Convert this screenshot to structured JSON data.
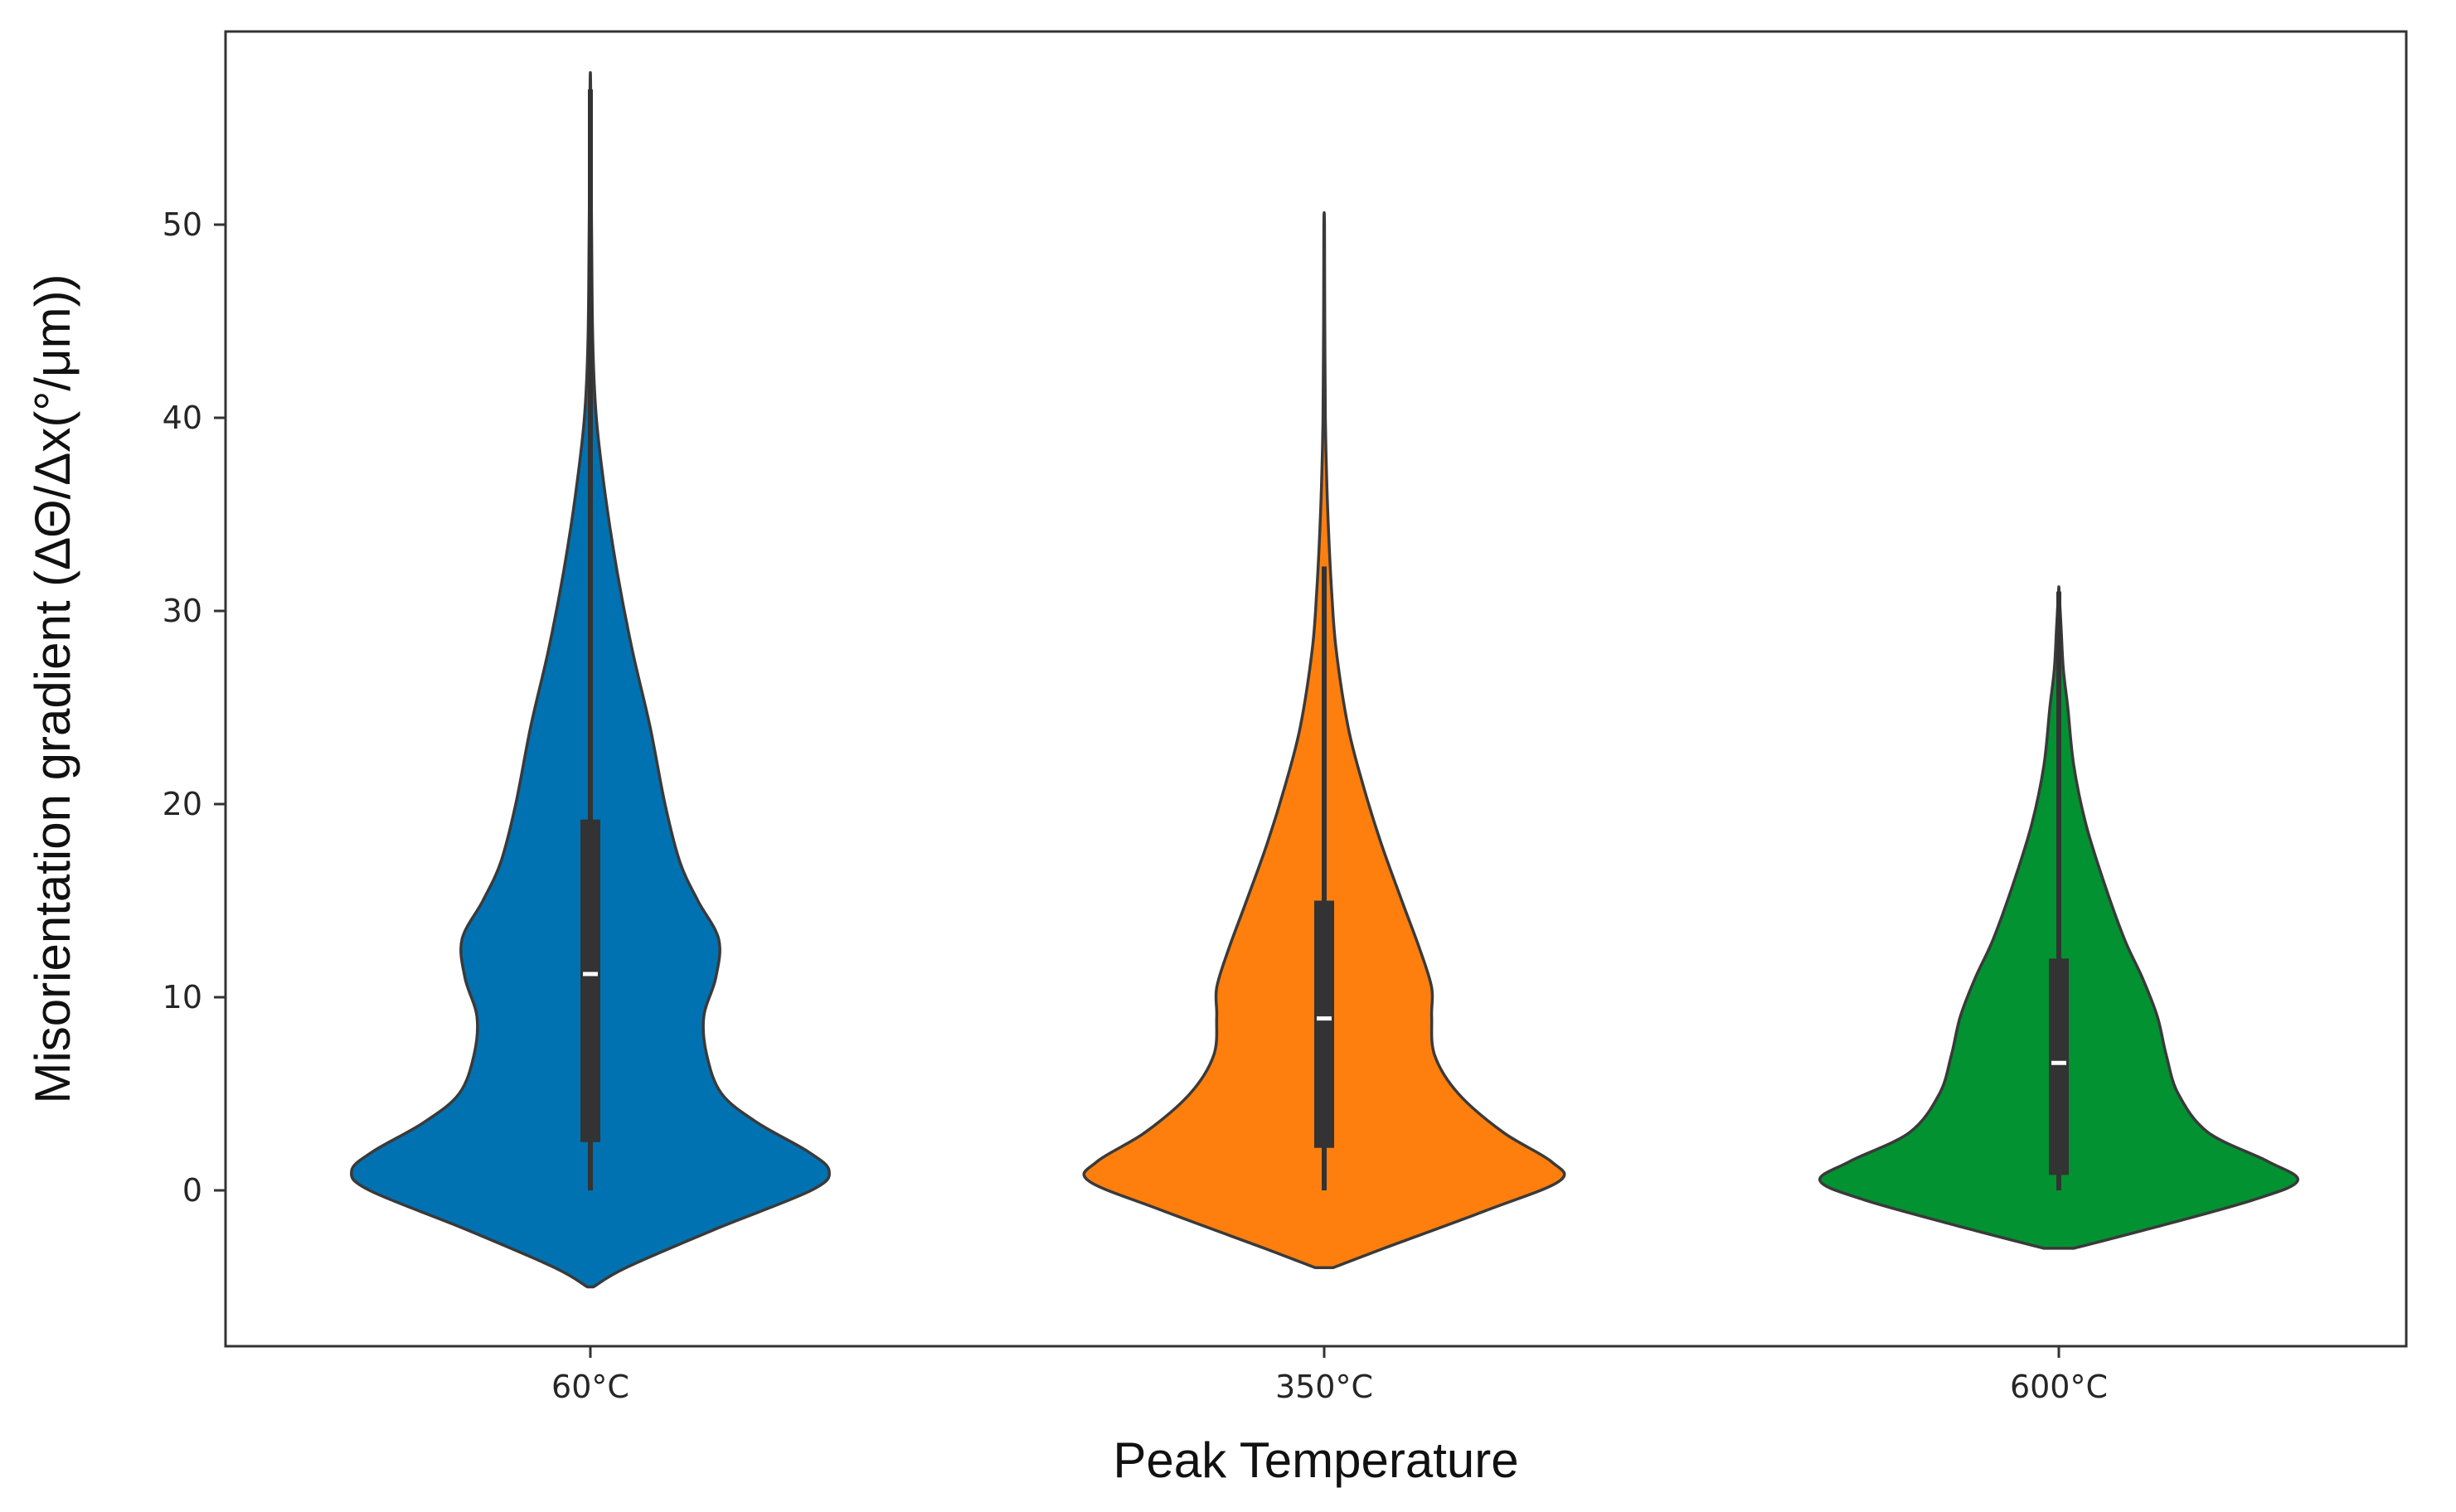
{
  "chart_data": {
    "type": "violin",
    "xlabel": "Peak Temperature",
    "ylabel": "Misorientation gradient (ΔΘ/Δx(°/μm))",
    "ylim": [
      -8,
      60
    ],
    "yticks": [
      0,
      10,
      20,
      30,
      40,
      50
    ],
    "grid": false,
    "legend": "none",
    "categories": [
      "60°C",
      "350°C",
      "600°C"
    ],
    "series": [
      {
        "category": "60°C",
        "color": "#0072b2",
        "y_min": 0,
        "y_max": 57,
        "q1": 2.5,
        "median": 11.2,
        "q3": 19.2,
        "whisker_low": 0,
        "whisker_high": 57,
        "kde_extent": [
          -5,
          57
        ],
        "density_profile": [
          [
            -5,
            0.01
          ],
          [
            -4,
            0.12
          ],
          [
            -2,
            0.42
          ],
          [
            0,
            0.74
          ],
          [
            1,
            0.8
          ],
          [
            2,
            0.73
          ],
          [
            3.5,
            0.56
          ],
          [
            5,
            0.44
          ],
          [
            7,
            0.39
          ],
          [
            9,
            0.38
          ],
          [
            11,
            0.42
          ],
          [
            13,
            0.43
          ],
          [
            15,
            0.36
          ],
          [
            17,
            0.3
          ],
          [
            20,
            0.25
          ],
          [
            24,
            0.2
          ],
          [
            28,
            0.14
          ],
          [
            32,
            0.09
          ],
          [
            36,
            0.05
          ],
          [
            40,
            0.02
          ],
          [
            44,
            0.008
          ],
          [
            50,
            0.004
          ],
          [
            57,
            0.001
          ]
        ]
      },
      {
        "category": "350°C",
        "color": "#ff7f0e",
        "y_min": 0,
        "y_max": 50,
        "q1": 2.2,
        "median": 8.9,
        "q3": 15.0,
        "whisker_low": 0,
        "whisker_high": 32.3,
        "kde_extent": [
          -4,
          50
        ],
        "density_profile": [
          [
            -4,
            0.03
          ],
          [
            -3,
            0.2
          ],
          [
            -1,
            0.55
          ],
          [
            0.5,
            0.79
          ],
          [
            1.5,
            0.76
          ],
          [
            3,
            0.6
          ],
          [
            5,
            0.45
          ],
          [
            7,
            0.37
          ],
          [
            9,
            0.36
          ],
          [
            10.5,
            0.36
          ],
          [
            12.5,
            0.32
          ],
          [
            15,
            0.26
          ],
          [
            18,
            0.19
          ],
          [
            21,
            0.13
          ],
          [
            24,
            0.08
          ],
          [
            28,
            0.04
          ],
          [
            31,
            0.025
          ],
          [
            34,
            0.015
          ],
          [
            37,
            0.008
          ],
          [
            40,
            0.004
          ],
          [
            45,
            0.002
          ],
          [
            50,
            0.001
          ]
        ]
      },
      {
        "category": "600°C",
        "color": "#029231",
        "y_min": 0,
        "y_max": 31,
        "q1": 0.8,
        "median": 6.6,
        "q3": 12.0,
        "whisker_low": 0,
        "whisker_high": 31,
        "kde_extent": [
          -3,
          31
        ],
        "density_profile": [
          [
            -3,
            0.05
          ],
          [
            -2,
            0.3
          ],
          [
            -0.5,
            0.65
          ],
          [
            0.5,
            0.8
          ],
          [
            1.5,
            0.7
          ],
          [
            3,
            0.5
          ],
          [
            5,
            0.4
          ],
          [
            7,
            0.36
          ],
          [
            9,
            0.33
          ],
          [
            11,
            0.28
          ],
          [
            13,
            0.22
          ],
          [
            16,
            0.15
          ],
          [
            19,
            0.09
          ],
          [
            22,
            0.05
          ],
          [
            25,
            0.03
          ],
          [
            27,
            0.015
          ],
          [
            29,
            0.008
          ],
          [
            31,
            0.001
          ]
        ]
      }
    ]
  }
}
